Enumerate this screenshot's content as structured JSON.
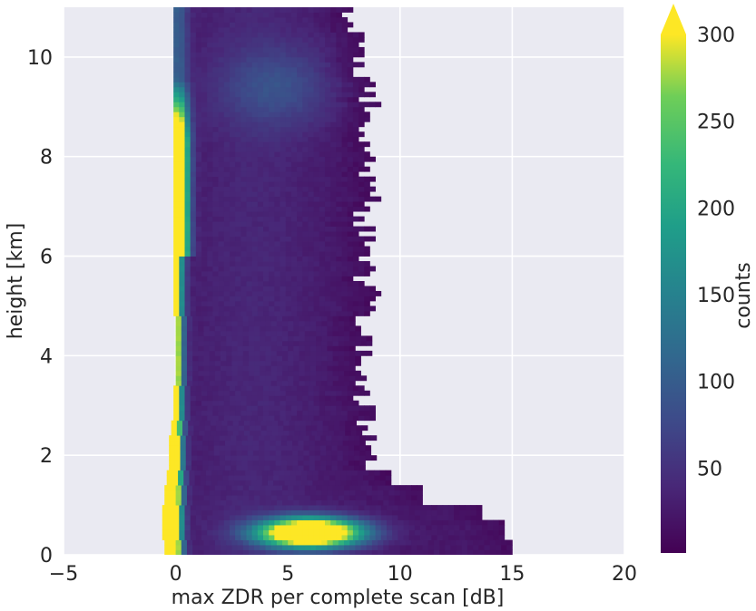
{
  "chart_data": {
    "type": "heatmap",
    "xlabel": "max ZDR per complete scan [dB]",
    "ylabel": "height [km]",
    "xlim": [
      -5,
      20
    ],
    "ylim": [
      0,
      11
    ],
    "xticks": [
      "−5",
      "0",
      "5",
      "10",
      "15",
      "20"
    ],
    "yticks": [
      "0",
      "2",
      "4",
      "6",
      "8",
      "10"
    ],
    "grid": true,
    "colorbar": {
      "label": "counts",
      "ticks": [
        "50",
        "100",
        "150",
        "200",
        "250",
        "300"
      ],
      "range": [
        1,
        300
      ],
      "extend": "max",
      "colormap": "viridis"
    },
    "bins": {
      "x_width_db": 0.25,
      "y_height_km": 0.1
    },
    "x_edges": [
      -0.5,
      -0.6,
      -0.6,
      -0.5,
      -0.4,
      -0.3,
      -0.3,
      -0.2,
      -0.1,
      -0.1,
      0.0,
      0.0,
      0.0,
      0.0,
      -0.1,
      -0.1,
      -0.1,
      -0.1,
      -0.1,
      -0.1,
      -0.1,
      -0.1,
      -0.1,
      -0.1,
      -0.1,
      -0.1,
      -0.1,
      -0.1,
      -0.1,
      -0.1,
      -0.1,
      -0.1
    ],
    "x_right_edges": [
      14.9,
      14.5,
      13.5,
      11.0,
      9.5,
      8.4,
      8.3,
      8.2,
      8.3,
      8.2,
      8.3,
      8.2,
      8.3,
      8.4,
      8.5,
      8.6,
      8.4,
      8.3,
      8.5,
      8.4,
      8.5,
      8.5,
      8.6,
      8.5,
      8.5,
      8.5,
      8.4,
      8.3,
      8.3,
      8.2,
      8.1,
      7.8
    ]
  },
  "colors": {
    "axes_bg": "#eaeaf2",
    "grid": "#ffffff",
    "text": "#262626"
  }
}
